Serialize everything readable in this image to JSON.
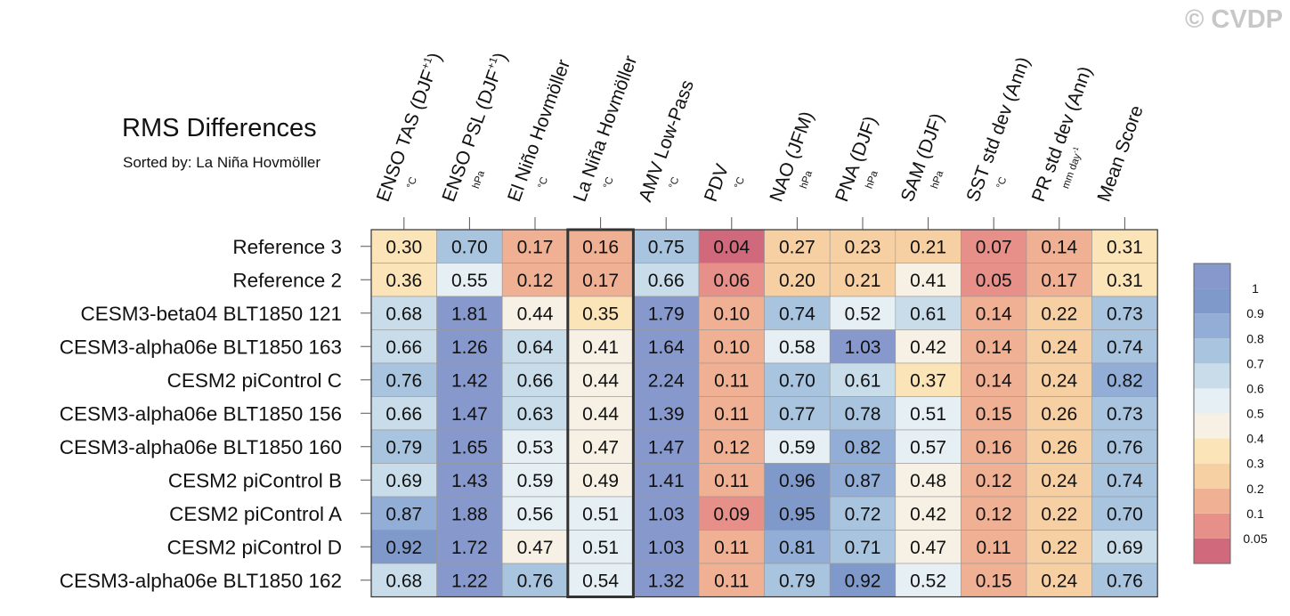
{
  "title": "RMS Differences",
  "subtitle": "Sorted by: La Niña Hovmöller",
  "watermark": "© CVDP",
  "chart_data": {
    "type": "heatmap",
    "title": "RMS Differences",
    "subtitle": "Sorted by: La Niña Hovmöller",
    "sorted_by_column": "La Niña Hovmöller",
    "columns": [
      {
        "label": "ENSO TAS (DJF",
        "sup": "+1",
        "close": ")",
        "units": "°C",
        "units_sup": ""
      },
      {
        "label": "ENSO PSL (DJF",
        "sup": "+1",
        "close": ")",
        "units": "hPa",
        "units_sup": ""
      },
      {
        "label": "El Niño Hovmöller",
        "sup": "",
        "close": "",
        "units": "°C",
        "units_sup": ""
      },
      {
        "label": "La Niña Hovmöller",
        "sup": "",
        "close": "",
        "units": "°C",
        "units_sup": ""
      },
      {
        "label": "AMV Low-Pass",
        "sup": "",
        "close": "",
        "units": "°C",
        "units_sup": ""
      },
      {
        "label": "PDV",
        "sup": "",
        "close": "",
        "units": "°C",
        "units_sup": ""
      },
      {
        "label": "NAO (JFM)",
        "sup": "",
        "close": "",
        "units": "hPa",
        "units_sup": ""
      },
      {
        "label": "PNA (DJF)",
        "sup": "",
        "close": "",
        "units": "hPa",
        "units_sup": ""
      },
      {
        "label": "SAM (DJF)",
        "sup": "",
        "close": "",
        "units": "hPa",
        "units_sup": ""
      },
      {
        "label": "SST std dev (Ann)",
        "sup": "",
        "close": "",
        "units": "°C",
        "units_sup": ""
      },
      {
        "label": "PR std dev (Ann)",
        "sup": "",
        "close": "",
        "units": "mm day",
        "units_sup": "-1"
      },
      {
        "label": "Mean Score",
        "sup": "",
        "close": "",
        "units": "",
        "units_sup": ""
      }
    ],
    "rows": [
      {
        "name": "Reference 3",
        "values": [
          "0.30",
          "0.70",
          "0.17",
          "0.16",
          "0.75",
          "0.04",
          "0.27",
          "0.23",
          "0.21",
          "0.07",
          "0.14",
          "0.31"
        ]
      },
      {
        "name": "Reference 2",
        "values": [
          "0.36",
          "0.55",
          "0.12",
          "0.17",
          "0.66",
          "0.06",
          "0.20",
          "0.21",
          "0.41",
          "0.05",
          "0.17",
          "0.31"
        ]
      },
      {
        "name": "CESM3-beta04 BLT1850 121",
        "values": [
          "0.68",
          "1.81",
          "0.44",
          "0.35",
          "1.79",
          "0.10",
          "0.74",
          "0.52",
          "0.61",
          "0.14",
          "0.22",
          "0.73"
        ]
      },
      {
        "name": "CESM3-alpha06e BLT1850 163",
        "values": [
          "0.66",
          "1.26",
          "0.64",
          "0.41",
          "1.64",
          "0.10",
          "0.58",
          "1.03",
          "0.42",
          "0.14",
          "0.24",
          "0.74"
        ]
      },
      {
        "name": "CESM2 piControl C",
        "values": [
          "0.76",
          "1.42",
          "0.66",
          "0.44",
          "2.24",
          "0.11",
          "0.70",
          "0.61",
          "0.37",
          "0.14",
          "0.24",
          "0.82"
        ]
      },
      {
        "name": "CESM3-alpha06e BLT1850 156",
        "values": [
          "0.66",
          "1.47",
          "0.63",
          "0.44",
          "1.39",
          "0.11",
          "0.77",
          "0.78",
          "0.51",
          "0.15",
          "0.26",
          "0.73"
        ]
      },
      {
        "name": "CESM3-alpha06e BLT1850 160",
        "values": [
          "0.79",
          "1.65",
          "0.53",
          "0.47",
          "1.47",
          "0.12",
          "0.59",
          "0.82",
          "0.57",
          "0.16",
          "0.26",
          "0.76"
        ]
      },
      {
        "name": "CESM2 piControl B",
        "values": [
          "0.69",
          "1.43",
          "0.59",
          "0.49",
          "1.41",
          "0.11",
          "0.96",
          "0.87",
          "0.48",
          "0.12",
          "0.24",
          "0.74"
        ]
      },
      {
        "name": "CESM2 piControl A",
        "values": [
          "0.87",
          "1.88",
          "0.56",
          "0.51",
          "1.03",
          "0.09",
          "0.95",
          "0.72",
          "0.42",
          "0.12",
          "0.22",
          "0.70"
        ]
      },
      {
        "name": "CESM2 piControl D",
        "values": [
          "0.92",
          "1.72",
          "0.47",
          "0.51",
          "1.03",
          "0.11",
          "0.81",
          "0.71",
          "0.47",
          "0.11",
          "0.22",
          "0.69"
        ]
      },
      {
        "name": "CESM3-alpha06e BLT1850 162",
        "values": [
          "0.68",
          "1.22",
          "0.76",
          "0.54",
          "1.32",
          "0.11",
          "0.79",
          "0.92",
          "0.52",
          "0.15",
          "0.24",
          "0.76"
        ]
      }
    ],
    "colorbar": {
      "levels": [
        "0.05",
        "0.1",
        "0.2",
        "0.3",
        "0.4",
        "0.5",
        "0.6",
        "0.7",
        "0.8",
        "0.9",
        "1"
      ],
      "colors": [
        "#d1697c",
        "#e69089",
        "#f0b093",
        "#f6cfa3",
        "#fbe4b8",
        "#f6f1e4",
        "#e5eff4",
        "#c8dcea",
        "#a8c4df",
        "#93aed6",
        "#7f99cb",
        "#8798cc"
      ]
    }
  }
}
